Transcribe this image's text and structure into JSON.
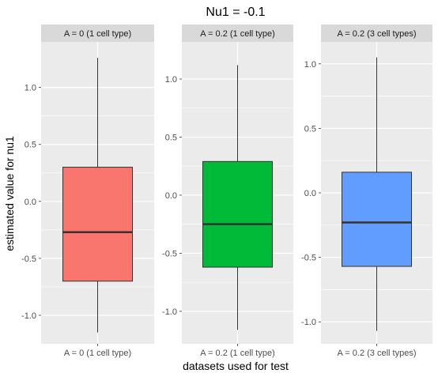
{
  "chart_data": {
    "type": "boxplot",
    "title": "Nu1 = -0.1",
    "xlabel": "datasets used for test",
    "ylabel": "estimated value for nu1",
    "panels": [
      {
        "strip": "A = 0 (1 cell type)",
        "category": "A = 0 (1 cell type)",
        "color": "#F8766D",
        "ylim": [
          -1.25,
          1.4
        ],
        "yticks": [
          -1.0,
          -0.5,
          0.0,
          0.5,
          1.0
        ],
        "ytick_labels": [
          "-1.0",
          "-0.5",
          "0.0",
          "0.5",
          "1.0"
        ],
        "box": {
          "whisker_low": -1.15,
          "q1": -0.7,
          "median": -0.27,
          "q3": 0.3,
          "whisker_high": 1.26
        }
      },
      {
        "strip": "A = 0.2 (1 cell type)",
        "category": "A = 0.2 (1 cell type)",
        "color": "#00BA38",
        "ylim": [
          -1.28,
          1.32
        ],
        "yticks": [
          -1.0,
          -0.5,
          0.0,
          0.5,
          1.0
        ],
        "ytick_labels": [
          "-1.0",
          "-0.5",
          "0.0",
          "0.5",
          "1.0"
        ],
        "box": {
          "whisker_low": -1.16,
          "q1": -0.62,
          "median": -0.25,
          "q3": 0.29,
          "whisker_high": 1.12
        }
      },
      {
        "strip": "A = 0.2 (3 cell types)",
        "category": "A = 0.2 (3 cell types)",
        "color": "#619CFF",
        "ylim": [
          -1.17,
          1.17
        ],
        "yticks": [
          -1.0,
          -0.5,
          0.0,
          0.5,
          1.0
        ],
        "ytick_labels": [
          "-1.0",
          "-0.5",
          "0.0",
          "0.5",
          "1.0"
        ],
        "box": {
          "whisker_low": -1.07,
          "q1": -0.57,
          "median": -0.23,
          "q3": 0.16,
          "whisker_high": 1.05
        }
      }
    ],
    "grid": true,
    "legend": "none"
  }
}
